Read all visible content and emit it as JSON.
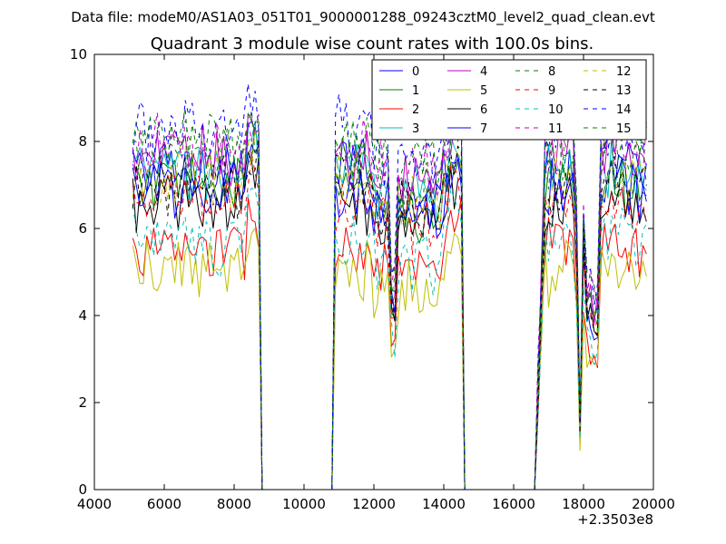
{
  "chart_data": {
    "type": "line",
    "suptitle": "Data file: modeM0/AS1A03_051T01_9000001288_09243cztM0_level2_quad_clean.evt",
    "title": "Quadrant 3 module wise count rates with 100.0s bins.",
    "xlabel": "",
    "ylabel": "",
    "x_offset_label": "+2.3503e8",
    "xlim": [
      4000,
      20000
    ],
    "ylim": [
      0,
      10
    ],
    "x_ticks": [
      "4000",
      "6000",
      "8000",
      "10000",
      "12000",
      "14000",
      "16000",
      "18000",
      "20000"
    ],
    "y_ticks": [
      "0",
      "2",
      "4",
      "6",
      "8",
      "10"
    ],
    "legend_position": "top-right",
    "x_start": 5100,
    "x_step": 100,
    "num_points": 148,
    "segments": [
      {
        "x_from": 5100,
        "x_to": 8700,
        "drop_to": 8800,
        "state": "active"
      },
      {
        "x_from": 8800,
        "x_to": 10800,
        "state": "zero"
      },
      {
        "x_from": 10900,
        "x_to": 14500,
        "drop_to": 14600,
        "state": "active"
      },
      {
        "x_from": 14600,
        "x_to": 16600,
        "state": "zero"
      },
      {
        "x_from": 16700,
        "x_to": 19800,
        "state": "active"
      }
    ],
    "dips": [
      {
        "x": 12550,
        "depth": 0.55
      },
      {
        "x": 17900,
        "depth": 0.8
      },
      {
        "x": 18150,
        "depth": 0.65
      },
      {
        "x": 18350,
        "depth": 0.75
      }
    ],
    "series": [
      {
        "name": "0",
        "color": "#0000ff",
        "dash": "solid",
        "level": 7.4
      },
      {
        "name": "1",
        "color": "#008000",
        "dash": "solid",
        "level": 7.0
      },
      {
        "name": "2",
        "color": "#ff0000",
        "dash": "solid",
        "level": 5.5
      },
      {
        "name": "3",
        "color": "#00bfbf",
        "dash": "solid",
        "level": 7.3
      },
      {
        "name": "4",
        "color": "#bf00bf",
        "dash": "solid",
        "level": 7.7
      },
      {
        "name": "5",
        "color": "#bfbf00",
        "dash": "solid",
        "level": 5.0
      },
      {
        "name": "6",
        "color": "#000000",
        "dash": "solid",
        "level": 6.6
      },
      {
        "name": "7",
        "color": "#0000ff",
        "dash": "solid",
        "level": 6.9
      },
      {
        "name": "8",
        "color": "#008000",
        "dash": "dashed",
        "level": 7.6
      },
      {
        "name": "9",
        "color": "#ff0000",
        "dash": "dashed",
        "level": 6.6
      },
      {
        "name": "10",
        "color": "#00bfbf",
        "dash": "dashed",
        "level": 5.7
      },
      {
        "name": "11",
        "color": "#bf00bf",
        "dash": "dashed",
        "level": 7.9
      },
      {
        "name": "12",
        "color": "#bfbf00",
        "dash": "dashed",
        "level": 7.2
      },
      {
        "name": "13",
        "color": "#000000",
        "dash": "dashed",
        "level": 7.0
      },
      {
        "name": "14",
        "color": "#0000ff",
        "dash": "dashed",
        "level": 8.3
      },
      {
        "name": "15",
        "color": "#008000",
        "dash": "dashed",
        "level": 8.1
      }
    ]
  }
}
